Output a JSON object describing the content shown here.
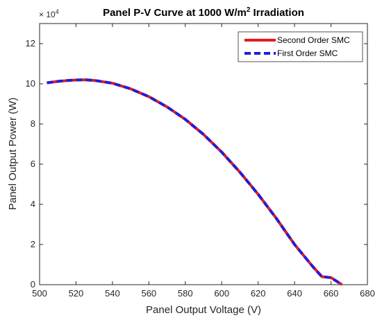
{
  "chart_data": {
    "type": "line",
    "title_prefix": "Panel P-V Curve at 1000 W/m",
    "title_sup": "2",
    "title_suffix": " Irradiation",
    "xlabel": "Panel Output Voltage (V)",
    "ylabel": "Panel Output Power (W)",
    "xlim": [
      500,
      680
    ],
    "ylim": [
      0,
      13
    ],
    "y_multiplier_base": "× 10",
    "y_multiplier_exp": "4",
    "xticks": [
      500,
      520,
      540,
      560,
      580,
      600,
      620,
      640,
      660,
      680
    ],
    "yticks": [
      0,
      2,
      4,
      6,
      8,
      10,
      12
    ],
    "grid": false,
    "legend_position": "top-right",
    "series": [
      {
        "name": "Second Order SMC",
        "color": "#e41a1c",
        "style": "solid",
        "x": [
          504,
          510,
          516,
          520,
          525,
          530,
          540,
          550,
          560,
          570,
          580,
          590,
          600,
          610,
          620,
          630,
          640,
          650,
          655,
          660,
          664,
          666
        ],
        "y": [
          10.05,
          10.12,
          10.17,
          10.19,
          10.2,
          10.17,
          10.03,
          9.75,
          9.36,
          8.85,
          8.23,
          7.48,
          6.6,
          5.6,
          4.5,
          3.3,
          2.0,
          0.9,
          0.4,
          0.35,
          0.12,
          0.0
        ]
      },
      {
        "name": "First Order SMC",
        "color": "#1f1fd8",
        "style": "dashed",
        "x": [
          504,
          510,
          516,
          520,
          525,
          530,
          540,
          550,
          560,
          570,
          580,
          590,
          600,
          610,
          620,
          630,
          640,
          650,
          655,
          660,
          664,
          666
        ],
        "y": [
          10.05,
          10.12,
          10.17,
          10.19,
          10.2,
          10.17,
          10.03,
          9.75,
          9.36,
          8.85,
          8.23,
          7.48,
          6.6,
          5.6,
          4.5,
          3.3,
          2.0,
          0.9,
          0.4,
          0.35,
          0.12,
          0.0
        ]
      }
    ]
  }
}
